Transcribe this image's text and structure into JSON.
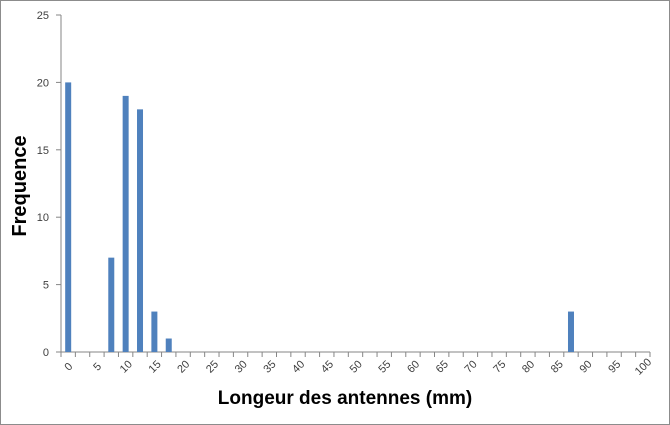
{
  "chart_data": {
    "type": "bar",
    "title": "",
    "xlabel": "Longeur des antennes (mm)",
    "ylabel": "Frequence",
    "categories": [
      "0",
      "2.5",
      "5",
      "7.5",
      "10",
      "12.5",
      "15",
      "17.5",
      "20",
      "22.5",
      "25",
      "27.5",
      "30",
      "32.5",
      "35",
      "37.5",
      "40",
      "42.5",
      "45",
      "47.5",
      "50",
      "52.5",
      "55",
      "57.5",
      "60",
      "62.5",
      "65",
      "67.5",
      "70",
      "72.5",
      "75",
      "77.5",
      "80",
      "82.5",
      "85",
      "87.5",
      "90",
      "92.5",
      "95",
      "97.5",
      "100"
    ],
    "values": [
      20,
      0,
      0,
      7,
      19,
      18,
      3,
      1,
      0,
      0,
      0,
      0,
      0,
      0,
      0,
      0,
      0,
      0,
      0,
      0,
      0,
      0,
      0,
      0,
      0,
      0,
      0,
      0,
      0,
      0,
      0,
      0,
      0,
      0,
      0,
      3,
      0,
      0,
      0,
      0,
      0
    ],
    "x_tick_labels": [
      "0",
      "5",
      "10",
      "15",
      "20",
      "25",
      "30",
      "35",
      "40",
      "45",
      "50",
      "55",
      "60",
      "65",
      "70",
      "75",
      "80",
      "85",
      "90",
      "95",
      "100"
    ],
    "y_ticks": [
      0,
      5,
      10,
      15,
      20,
      25
    ],
    "ylim": [
      0,
      25
    ],
    "grid": false,
    "legend": "none",
    "bar_color": "#4F81BD"
  }
}
